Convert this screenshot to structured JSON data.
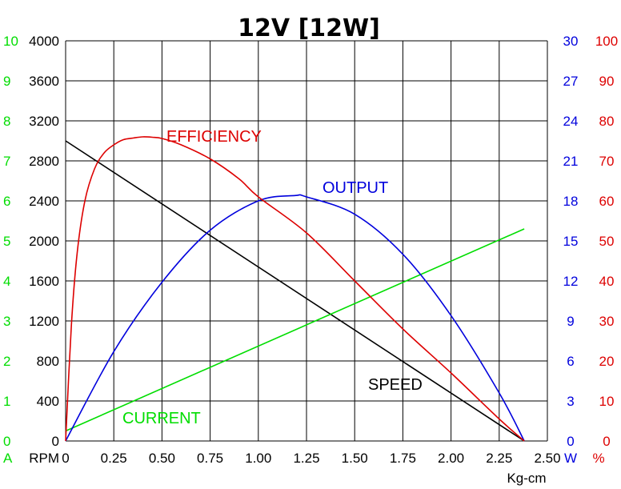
{
  "chart_data": {
    "type": "line",
    "title": "12V [12W]",
    "grid": true,
    "xlabel": "Kg-cm",
    "x_ticks": [
      "0",
      "0.25",
      "0.50",
      "0.75",
      "1.00",
      "1.25",
      "1.50",
      "1.75",
      "2.00",
      "2.25",
      "2.50"
    ],
    "xlim": [
      0,
      2.5
    ],
    "axes": {
      "current": {
        "unit": "A",
        "range": [
          0,
          10
        ],
        "ticks": [
          "0",
          "1",
          "2",
          "3",
          "4",
          "5",
          "6",
          "7",
          "8",
          "9",
          "10"
        ],
        "color": "#00dd00"
      },
      "speed": {
        "unit": "RPM",
        "range": [
          0,
          4000
        ],
        "ticks": [
          "0",
          "400",
          "800",
          "1200",
          "1600",
          "2000",
          "2400",
          "2800",
          "3200",
          "3600",
          "4000"
        ],
        "color": "#000000"
      },
      "output": {
        "unit": "W",
        "range": [
          0,
          30
        ],
        "ticks": [
          "0",
          "3",
          "6",
          "9",
          "12",
          "15",
          "18",
          "21",
          "24",
          "27",
          "30"
        ],
        "color": "#0000dd"
      },
      "efficiency": {
        "unit": "%",
        "range": [
          0,
          100
        ],
        "ticks": [
          "0",
          "10",
          "20",
          "30",
          "40",
          "50",
          "60",
          "70",
          "80",
          "90",
          "100"
        ],
        "color": "#dd0000"
      }
    },
    "series": [
      {
        "name": "SPEED",
        "axis": "speed",
        "color": "#000000",
        "x": [
          0,
          2.38
        ],
        "y": [
          3000,
          0
        ]
      },
      {
        "name": "CURRENT",
        "axis": "current",
        "color": "#00dd00",
        "x": [
          0,
          2.38
        ],
        "y": [
          0.25,
          5.3
        ]
      },
      {
        "name": "OUTPUT",
        "axis": "output",
        "color": "#0000dd",
        "x": [
          0,
          0.25,
          0.5,
          0.75,
          1.0,
          1.19,
          1.25,
          1.5,
          1.75,
          2.0,
          2.25,
          2.38
        ],
        "y": [
          0,
          6.7,
          11.9,
          15.8,
          18.0,
          18.4,
          18.3,
          17.0,
          14.0,
          9.4,
          3.6,
          0
        ]
      },
      {
        "name": "EFFICIENCY",
        "axis": "efficiency",
        "color": "#dd0000",
        "x": [
          0,
          0.03,
          0.06,
          0.1,
          0.15,
          0.2,
          0.25,
          0.3,
          0.35,
          0.4,
          0.45,
          0.5,
          0.6,
          0.75,
          0.9,
          1.0,
          1.25,
          1.5,
          1.75,
          2.0,
          2.25,
          2.38
        ],
        "y": [
          0,
          29,
          47,
          60,
          68,
          72,
          74,
          75.3,
          75.7,
          76,
          75.9,
          75.6,
          74,
          70.5,
          65.5,
          61,
          52,
          40,
          28,
          17,
          5.5,
          0
        ]
      }
    ],
    "annotations": [
      {
        "text": "EFFICIENCY",
        "series": "EFFICIENCY"
      },
      {
        "text": "OUTPUT",
        "series": "OUTPUT"
      },
      {
        "text": "SPEED",
        "series": "SPEED"
      },
      {
        "text": "CURRENT",
        "series": "CURRENT"
      }
    ]
  }
}
